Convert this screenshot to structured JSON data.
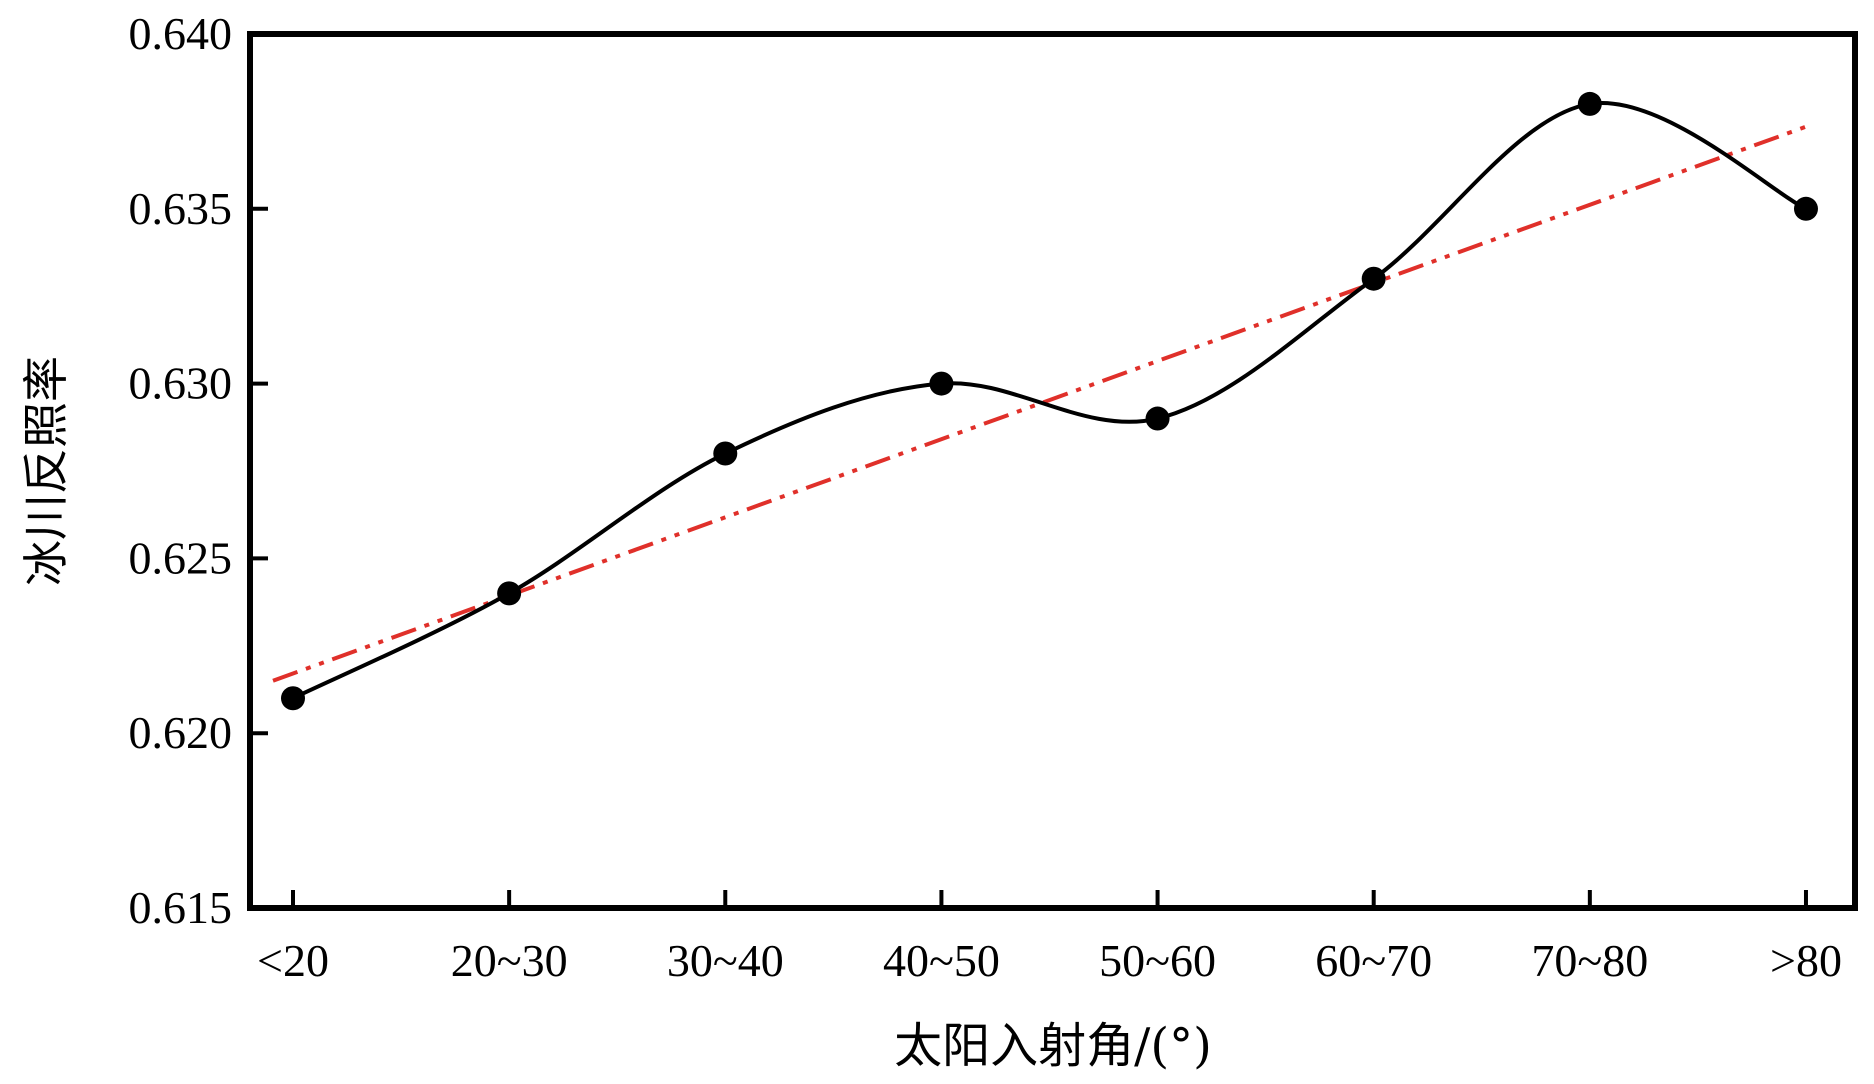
{
  "chart_data": {
    "type": "line",
    "title": "",
    "xlabel": "太阳入射角/(°)",
    "ylabel": "冰川反照率",
    "categories": [
      "<20",
      "20~30",
      "30~40",
      "40~50",
      "50~60",
      "60~70",
      "70~80",
      ">80"
    ],
    "series": [
      {
        "values": [
          0.621,
          0.624,
          0.628,
          0.63,
          0.629,
          0.633,
          0.638,
          0.635
        ],
        "style": "smooth-solid",
        "color": "#000000",
        "markers": "filled-circle"
      },
      {
        "trend_start": 0.6215,
        "trend_end": 0.6374,
        "style": "dash-dot-dot",
        "color": "#e0302a"
      }
    ],
    "ylim": [
      0.615,
      0.64
    ],
    "yticks": [
      "0.615",
      "0.620",
      "0.625",
      "0.630",
      "0.635",
      "0.640"
    ],
    "grid": false,
    "legend": "none"
  }
}
